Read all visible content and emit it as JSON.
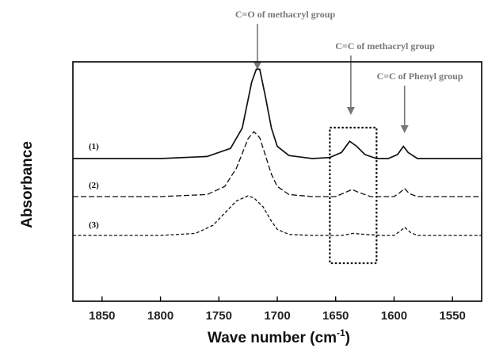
{
  "chart_data": {
    "type": "line",
    "xlabel": "Wave number (cm",
    "xlabel_sup": "-1",
    "xlabel_end": ")",
    "ylabel": "Absorbance",
    "xlim": [
      1875,
      1525
    ],
    "x_reversed": true,
    "x_ticks": [
      1850,
      1800,
      1750,
      1700,
      1650,
      1600,
      1550
    ],
    "grid": false,
    "series": [
      {
        "name": "(1)",
        "line_style": "solid",
        "points": [
          [
            1875,
            0.0
          ],
          [
            1800,
            0.0
          ],
          [
            1760,
            0.02
          ],
          [
            1740,
            0.1
          ],
          [
            1730,
            0.3
          ],
          [
            1722,
            0.75
          ],
          [
            1718,
            0.88
          ],
          [
            1715,
            0.88
          ],
          [
            1710,
            0.6
          ],
          [
            1705,
            0.3
          ],
          [
            1700,
            0.12
          ],
          [
            1690,
            0.03
          ],
          [
            1670,
            0.0
          ],
          [
            1655,
            0.01
          ],
          [
            1645,
            0.06
          ],
          [
            1638,
            0.17
          ],
          [
            1632,
            0.12
          ],
          [
            1625,
            0.04
          ],
          [
            1615,
            0.0
          ],
          [
            1605,
            0.0
          ],
          [
            1597,
            0.04
          ],
          [
            1592,
            0.12
          ],
          [
            1588,
            0.06
          ],
          [
            1580,
            0.0
          ],
          [
            1525,
            0.0
          ]
        ]
      },
      {
        "name": "(2)",
        "line_style": "dashed",
        "points": [
          [
            1875,
            0.0
          ],
          [
            1800,
            0.0
          ],
          [
            1760,
            0.02
          ],
          [
            1745,
            0.1
          ],
          [
            1735,
            0.28
          ],
          [
            1725,
            0.57
          ],
          [
            1720,
            0.64
          ],
          [
            1715,
            0.58
          ],
          [
            1710,
            0.4
          ],
          [
            1705,
            0.22
          ],
          [
            1700,
            0.1
          ],
          [
            1690,
            0.02
          ],
          [
            1670,
            0.0
          ],
          [
            1650,
            0.0
          ],
          [
            1640,
            0.05
          ],
          [
            1636,
            0.07
          ],
          [
            1630,
            0.04
          ],
          [
            1620,
            0.0
          ],
          [
            1600,
            0.0
          ],
          [
            1595,
            0.04
          ],
          [
            1591,
            0.08
          ],
          [
            1587,
            0.03
          ],
          [
            1580,
            0.0
          ],
          [
            1525,
            0.0
          ]
        ]
      },
      {
        "name": "(3)",
        "line_style": "dashed",
        "points": [
          [
            1875,
            0.0
          ],
          [
            1800,
            0.0
          ],
          [
            1770,
            0.02
          ],
          [
            1755,
            0.1
          ],
          [
            1745,
            0.22
          ],
          [
            1735,
            0.34
          ],
          [
            1725,
            0.39
          ],
          [
            1720,
            0.37
          ],
          [
            1712,
            0.28
          ],
          [
            1705,
            0.14
          ],
          [
            1700,
            0.06
          ],
          [
            1690,
            0.01
          ],
          [
            1670,
            0.0
          ],
          [
            1645,
            0.0
          ],
          [
            1635,
            0.02
          ],
          [
            1625,
            0.01
          ],
          [
            1610,
            0.0
          ],
          [
            1600,
            0.0
          ],
          [
            1595,
            0.04
          ],
          [
            1591,
            0.08
          ],
          [
            1586,
            0.03
          ],
          [
            1580,
            0.0
          ],
          [
            1525,
            0.0
          ]
        ]
      }
    ],
    "annotations": [
      {
        "text": "C=O of methacryl group",
        "points_to_x": 1717
      },
      {
        "text": "C=C of methacryl group",
        "points_to_x": 1637
      },
      {
        "text": "C=C of Phenyl group",
        "points_to_x": 1591
      }
    ],
    "highlight_box_x": [
      1655,
      1615
    ]
  }
}
